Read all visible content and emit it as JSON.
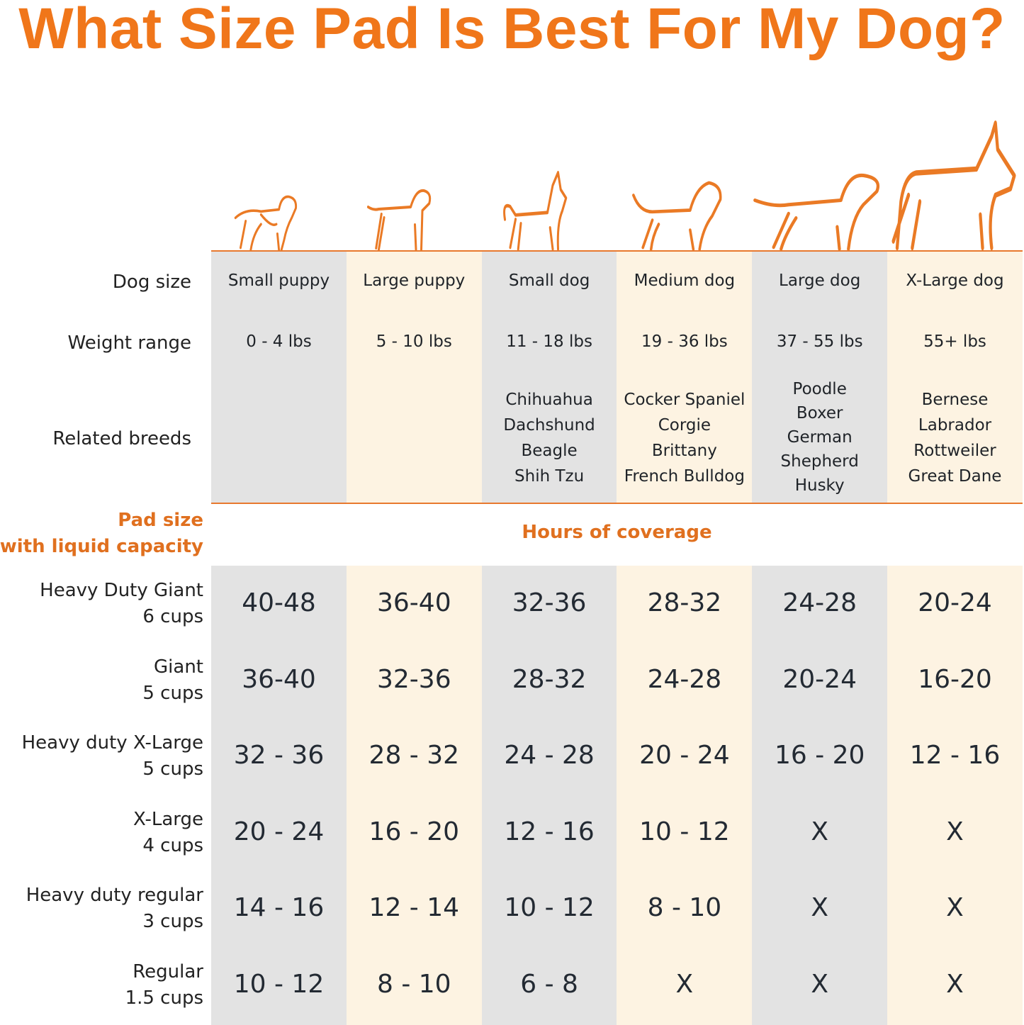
{
  "title": "What Size Pad Is Best For My Dog?",
  "colors": {
    "accent": "#f0761a",
    "gray_column": "#e3e3e3",
    "cream_column": "#fdf3e2"
  },
  "row_labels": {
    "dog_size": "Dog size",
    "weight_range": "Weight range",
    "related_breeds": "Related breeds"
  },
  "pad_size_header": {
    "line1": "Pad size",
    "line2": "with liquid capacity"
  },
  "coverage_header": "Hours of coverage",
  "columns": [
    {
      "icon": "small-puppy-icon",
      "size": "Small puppy",
      "weight": "0 - 4 lbs",
      "breeds": []
    },
    {
      "icon": "large-puppy-icon",
      "size": "Large puppy",
      "weight": "5 - 10 lbs",
      "breeds": []
    },
    {
      "icon": "small-dog-icon",
      "size": "Small dog",
      "weight": "11 - 18 lbs",
      "breeds": [
        "Chihuahua",
        "Dachshund",
        "Beagle",
        "Shih Tzu"
      ]
    },
    {
      "icon": "medium-dog-icon",
      "size": "Medium dog",
      "weight": "19 - 36 lbs",
      "breeds": [
        "Cocker Spaniel",
        "Corgie",
        "Brittany",
        "French Bulldog"
      ]
    },
    {
      "icon": "large-dog-icon",
      "size": "Large dog",
      "weight": "37 - 55 lbs",
      "breeds": [
        "Poodle",
        "Boxer",
        "German",
        "Shepherd",
        "Husky"
      ]
    },
    {
      "icon": "xlarge-dog-icon",
      "size": "X-Large dog",
      "weight": "55+ lbs",
      "breeds": [
        "Bernese",
        "Labrador",
        "Rottweiler",
        "Great Dane"
      ]
    }
  ],
  "pads": [
    {
      "name": "Heavy Duty Giant",
      "capacity": "6 cups",
      "hours": [
        "40-48",
        "36-40",
        "32-36",
        "28-32",
        "24-28",
        "20-24"
      ]
    },
    {
      "name": "Giant",
      "capacity": "5 cups",
      "hours": [
        "36-40",
        "32-36",
        "28-32",
        "24-28",
        "20-24",
        "16-20"
      ]
    },
    {
      "name": "Heavy duty X-Large",
      "capacity": "5 cups",
      "hours": [
        "32 - 36",
        "28 - 32",
        "24 - 28",
        "20 - 24",
        "16 - 20",
        "12 - 16"
      ]
    },
    {
      "name": "X-Large",
      "capacity": "4 cups",
      "hours": [
        "20 - 24",
        "16 - 20",
        "12 - 16",
        "10 - 12",
        "X",
        "X"
      ]
    },
    {
      "name": "Heavy duty regular",
      "capacity": "3 cups",
      "hours": [
        "14 - 16",
        "12 - 14",
        "10 - 12",
        "8 - 10",
        "X",
        "X"
      ]
    },
    {
      "name": "Regular",
      "capacity": "1.5 cups",
      "hours": [
        "10 - 12",
        "8 - 10",
        "6 - 8",
        "X",
        "X",
        "X"
      ]
    }
  ]
}
